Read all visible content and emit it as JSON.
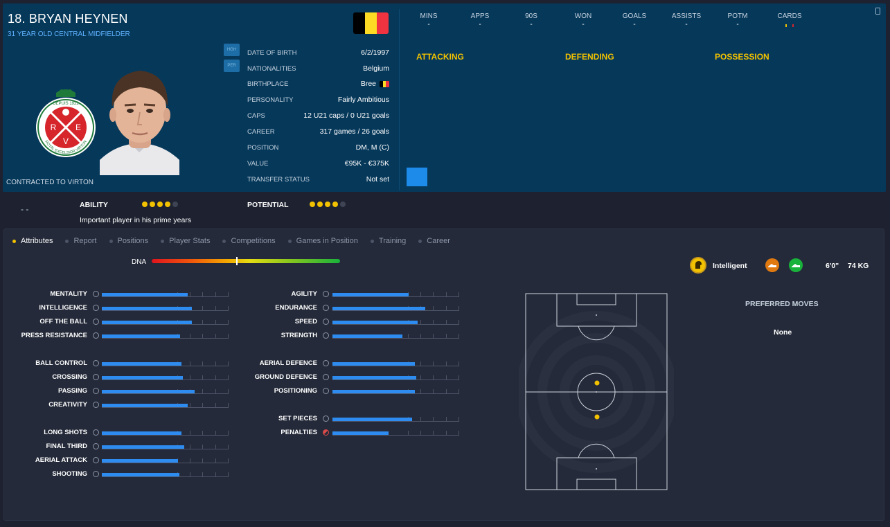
{
  "player": {
    "name": "18. BRYAN HEYNEN",
    "subtitle": "31 YEAR OLD  CENTRAL MIDFIELDER",
    "contract": "CONTRACTED TO VIRTON"
  },
  "crest": {
    "top_text": "DEPUIS 1922",
    "ring_text": "ROYAL EXCELSIOR VIRTON",
    "letters": [
      "R",
      "E",
      "V"
    ]
  },
  "side_buttons": [
    "HGH",
    "PER"
  ],
  "info": [
    {
      "label": "DATE OF BIRTH",
      "value": "6/2/1997"
    },
    {
      "label": "NATIONALITIES",
      "value": "Belgium"
    },
    {
      "label": "BIRTHPLACE",
      "value": "Bree"
    },
    {
      "label": "PERSONALITY",
      "value": "Fairly Ambitious"
    },
    {
      "label": "CAPS",
      "value": "12 U21 caps / 0 U21 goals"
    },
    {
      "label": "CAREER",
      "value": "317  games /  26  goals"
    },
    {
      "label": "POSITION",
      "value": "DM, M (C)"
    },
    {
      "label": "VALUE",
      "value": "€95K - €375K"
    },
    {
      "label": "TRANSFER STATUS",
      "value": "Not set"
    }
  ],
  "stats": [
    {
      "label": "MINS",
      "value": "-"
    },
    {
      "label": "APPS",
      "value": "-"
    },
    {
      "label": "90S",
      "value": "-"
    },
    {
      "label": "WON",
      "value": "-"
    },
    {
      "label": "GOALS",
      "value": "-"
    },
    {
      "label": "ASSISTS",
      "value": "-"
    },
    {
      "label": "POTM",
      "value": "-"
    },
    {
      "label": "CARDS",
      "value": ""
    }
  ],
  "sections": [
    "ATTACKING",
    "DEFENDING",
    "POSSESSION"
  ],
  "ability": {
    "dash": "- -",
    "ability_label": "ABILITY",
    "ability_stars": 4,
    "potential_label": "POTENTIAL",
    "potential_stars": 4,
    "max_stars": 5,
    "description": "Important player in his prime years"
  },
  "tabs": [
    "Attributes",
    "Report",
    "Positions",
    "Player Stats",
    "Competitions",
    "Games in Position",
    "Training",
    "Career"
  ],
  "active_tab": 0,
  "dna": {
    "label": "DNA",
    "marker": 0.45
  },
  "traits": {
    "mental": "Intelligent",
    "height": "6'0\"",
    "weight": "74 KG"
  },
  "attributes": {
    "left": [
      [
        {
          "name": "MENTALITY",
          "value": 0.68
        },
        {
          "name": "INTELLIGENCE",
          "value": 0.71
        },
        {
          "name": "OFF THE BALL",
          "value": 0.71
        },
        {
          "name": "PRESS RESISTANCE",
          "value": 0.62
        }
      ],
      [
        {
          "name": "BALL CONTROL",
          "value": 0.63
        },
        {
          "name": "CROSSING",
          "value": 0.64
        },
        {
          "name": "PASSING",
          "value": 0.73
        },
        {
          "name": "CREATIVITY",
          "value": 0.68
        }
      ],
      [
        {
          "name": "LONG SHOTS",
          "value": 0.63
        },
        {
          "name": "FINAL THIRD",
          "value": 0.65
        },
        {
          "name": "AERIAL ATTACK",
          "value": 0.6
        },
        {
          "name": "SHOOTING",
          "value": 0.61
        }
      ]
    ],
    "right": [
      [
        {
          "name": "AGILITY",
          "value": 0.6
        },
        {
          "name": "ENDURANCE",
          "value": 0.73
        },
        {
          "name": "SPEED",
          "value": 0.67
        },
        {
          "name": "STRENGTH",
          "value": 0.55
        }
      ],
      [
        {
          "name": "AERIAL DEFENCE",
          "value": 0.65
        },
        {
          "name": "GROUND DEFENCE",
          "value": 0.66
        },
        {
          "name": "POSITIONING",
          "value": 0.65
        }
      ],
      [
        {
          "name": "SET PIECES",
          "value": 0.63
        },
        {
          "name": "PENALTIES",
          "value": 0.44
        }
      ]
    ]
  },
  "preferred_moves": {
    "title": "PREFERRED MOVES",
    "value": "None"
  },
  "colors": {
    "accent": "#f2c200",
    "bar": "#2e8cf0",
    "header_bg": "#06385a",
    "belgium": [
      "#000000",
      "#fdda24",
      "#ef3340"
    ]
  }
}
